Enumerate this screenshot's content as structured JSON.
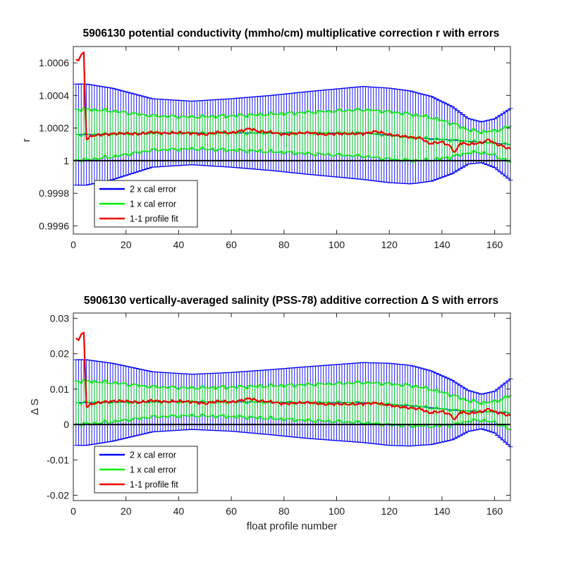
{
  "chart_data": [
    {
      "type": "line",
      "title": "5906130 potential conductivity (mmho/cm) multiplicative correction r with errors",
      "xlabel": "",
      "ylabel": "r",
      "xlim": [
        0,
        166
      ],
      "ylim": [
        0.99955,
        1.0007
      ],
      "xticks": [
        0,
        20,
        40,
        60,
        80,
        100,
        120,
        140,
        160
      ],
      "xtick_labels": [
        "0",
        "20",
        "40",
        "60",
        "80",
        "100",
        "120",
        "140",
        "160"
      ],
      "yticks": [
        0.9996,
        0.9998,
        1.0,
        1.0002,
        1.0004,
        1.0006
      ],
      "ytick_labels": [
        "0.9996",
        "0.9998",
        "1",
        "1.0002",
        "1.0004",
        "1.0006"
      ],
      "legend_position": "bottom-left",
      "reference_line": 1.0,
      "series": [
        {
          "name": "2 x cal error",
          "color": "#0000ff",
          "center_knots": [
            [
              5,
              1.00016
            ],
            [
              30,
              1.00017
            ],
            [
              60,
              1.00017
            ],
            [
              90,
              1.00017
            ],
            [
              110,
              1.00017
            ],
            [
              130,
              1.00014
            ],
            [
              145,
              1.000125
            ],
            [
              166,
              1.0001
            ]
          ],
          "halfwidth_knots": [
            [
              5,
              0.00031
            ],
            [
              15,
              0.00028
            ],
            [
              30,
              0.00021
            ],
            [
              45,
              0.000195
            ],
            [
              60,
              0.00021
            ],
            [
              75,
              0.00023
            ],
            [
              90,
              0.000255
            ],
            [
              110,
              0.000285
            ],
            [
              120,
              0.00029
            ],
            [
              128,
              0.000285
            ],
            [
              136,
              0.00026
            ],
            [
              144,
              0.000205
            ],
            [
              150,
              0.00014
            ],
            [
              155,
              0.000125
            ],
            [
              160,
              0.00015
            ],
            [
              166,
              0.00022
            ]
          ]
        },
        {
          "name": "1 x cal error",
          "color": "#00ee00",
          "center_knots": [
            [
              5,
              1.00016
            ],
            [
              30,
              1.00017
            ],
            [
              60,
              1.00017
            ],
            [
              90,
              1.00017
            ],
            [
              110,
              1.00017
            ],
            [
              130,
              1.00014
            ],
            [
              145,
              1.000125
            ],
            [
              166,
              1.0001
            ]
          ],
          "halfwidth_knots": [
            [
              5,
              0.000155
            ],
            [
              15,
              0.00014
            ],
            [
              30,
              0.000105
            ],
            [
              45,
              9.75e-05
            ],
            [
              60,
              0.000105
            ],
            [
              75,
              0.000115
            ],
            [
              90,
              0.0001275
            ],
            [
              110,
              0.0001425
            ],
            [
              120,
              0.000145
            ],
            [
              128,
              0.0001425
            ],
            [
              136,
              0.00013
            ],
            [
              144,
              0.0001025
            ],
            [
              150,
              7e-05
            ],
            [
              155,
              6.25e-05
            ],
            [
              160,
              7.5e-05
            ],
            [
              166,
              0.00011
            ]
          ]
        },
        {
          "name": "1-1 profile fit",
          "color": "#ee0000",
          "knots": [
            [
              1,
              1.00062
            ],
            [
              2,
              1.000615
            ],
            [
              3,
              1.00065
            ],
            [
              4,
              1.000665
            ],
            [
              4.5,
              1.00035
            ],
            [
              5,
              1.00013
            ],
            [
              7,
              1.000152
            ],
            [
              10,
              1.000158
            ],
            [
              15,
              1.000165
            ],
            [
              20,
              1.000168
            ],
            [
              25,
              1.000163
            ],
            [
              30,
              1.000175
            ],
            [
              35,
              1.000168
            ],
            [
              40,
              1.000172
            ],
            [
              45,
              1.000168
            ],
            [
              50,
              1.00016
            ],
            [
              55,
              1.000175
            ],
            [
              60,
              1.00017
            ],
            [
              65,
              1.000188
            ],
            [
              67,
              1.000198
            ],
            [
              70,
              1.00018
            ],
            [
              75,
              1.000175
            ],
            [
              80,
              1.00016
            ],
            [
              85,
              1.000168
            ],
            [
              90,
              1.000172
            ],
            [
              95,
              1.00016
            ],
            [
              100,
              1.000165
            ],
            [
              105,
              1.000165
            ],
            [
              110,
              1.000165
            ],
            [
              115,
              1.00018
            ],
            [
              120,
              1.00016
            ],
            [
              125,
              1.00015
            ],
            [
              130,
              1.00014
            ],
            [
              132,
              1.00014
            ],
            [
              135,
              1.000105
            ],
            [
              140,
              1.000115
            ],
            [
              143,
              1.00009
            ],
            [
              145,
              1.00005
            ],
            [
              147,
              1.00011
            ],
            [
              150,
              1.0001
            ],
            [
              155,
              1.00011
            ],
            [
              158,
              1.00013
            ],
            [
              160,
              1.000105
            ],
            [
              163,
              1.00009
            ],
            [
              166,
              1.00007
            ]
          ]
        }
      ]
    },
    {
      "type": "line",
      "title": "5906130 vertically-averaged salinity (PSS-78) additive correction Δ S with errors",
      "xlabel": "float profile number",
      "ylabel": "Δ S",
      "xlim": [
        0,
        166
      ],
      "ylim": [
        -0.0215,
        0.0315
      ],
      "xticks": [
        0,
        20,
        40,
        60,
        80,
        100,
        120,
        140,
        160
      ],
      "xtick_labels": [
        "0",
        "20",
        "40",
        "60",
        "80",
        "100",
        "120",
        "140",
        "160"
      ],
      "yticks": [
        -0.02,
        -0.01,
        0,
        0.01,
        0.02,
        0.03
      ],
      "ytick_labels": [
        "-0.02",
        "-0.01",
        "0",
        "0.01",
        "0.02",
        "0.03"
      ],
      "legend_position": "bottom-left",
      "reference_line": 0,
      "series": [
        {
          "name": "2 x cal error",
          "color": "#0000ff",
          "center_knots": [
            [
              5,
              0.0062
            ],
            [
              30,
              0.0064
            ],
            [
              60,
              0.0064
            ],
            [
              90,
              0.0062
            ],
            [
              110,
              0.0062
            ],
            [
              130,
              0.0052
            ],
            [
              145,
              0.004
            ],
            [
              166,
              0.0033
            ]
          ],
          "halfwidth_knots": [
            [
              5,
              0.0121
            ],
            [
              15,
              0.011
            ],
            [
              30,
              0.0085
            ],
            [
              45,
              0.0078
            ],
            [
              60,
              0.0083
            ],
            [
              75,
              0.0092
            ],
            [
              90,
              0.0102
            ],
            [
              110,
              0.0113
            ],
            [
              120,
              0.0116
            ],
            [
              128,
              0.0114
            ],
            [
              136,
              0.0104
            ],
            [
              144,
              0.0084
            ],
            [
              150,
              0.0058
            ],
            [
              155,
              0.0049
            ],
            [
              160,
              0.0059
            ],
            [
              166,
              0.0096
            ]
          ]
        },
        {
          "name": "1 x cal error",
          "color": "#00ee00",
          "center_knots": [
            [
              5,
              0.0062
            ],
            [
              30,
              0.0064
            ],
            [
              60,
              0.0064
            ],
            [
              90,
              0.0062
            ],
            [
              110,
              0.0062
            ],
            [
              130,
              0.0052
            ],
            [
              145,
              0.004
            ],
            [
              166,
              0.0033
            ]
          ],
          "halfwidth_knots": [
            [
              5,
              0.00605
            ],
            [
              15,
              0.0055
            ],
            [
              30,
              0.00425
            ],
            [
              45,
              0.0039
            ],
            [
              60,
              0.00415
            ],
            [
              75,
              0.0046
            ],
            [
              90,
              0.0051
            ],
            [
              110,
              0.00565
            ],
            [
              120,
              0.0058
            ],
            [
              128,
              0.0057
            ],
            [
              136,
              0.0052
            ],
            [
              144,
              0.0042
            ],
            [
              150,
              0.0029
            ],
            [
              155,
              0.00245
            ],
            [
              160,
              0.00295
            ],
            [
              166,
              0.0048
            ]
          ]
        },
        {
          "name": "1-1 profile fit",
          "color": "#ee0000",
          "knots": [
            [
              1,
              0.0244
            ],
            [
              2,
              0.0238
            ],
            [
              3,
              0.0255
            ],
            [
              4,
              0.026
            ],
            [
              4.5,
              0.015
            ],
            [
              5,
              0.0049
            ],
            [
              7,
              0.0058
            ],
            [
              10,
              0.0062
            ],
            [
              15,
              0.0066
            ],
            [
              20,
              0.0066
            ],
            [
              25,
              0.0062
            ],
            [
              30,
              0.0068
            ],
            [
              35,
              0.0064
            ],
            [
              40,
              0.0066
            ],
            [
              45,
              0.0064
            ],
            [
              50,
              0.0059
            ],
            [
              55,
              0.0066
            ],
            [
              60,
              0.0063
            ],
            [
              65,
              0.007
            ],
            [
              67,
              0.0074
            ],
            [
              70,
              0.0067
            ],
            [
              75,
              0.0064
            ],
            [
              80,
              0.0058
            ],
            [
              85,
              0.0061
            ],
            [
              90,
              0.0062
            ],
            [
              95,
              0.0057
            ],
            [
              100,
              0.0058
            ],
            [
              105,
              0.0057
            ],
            [
              110,
              0.0058
            ],
            [
              115,
              0.0061
            ],
            [
              120,
              0.0054
            ],
            [
              125,
              0.0049
            ],
            [
              130,
              0.0045
            ],
            [
              132,
              0.0044
            ],
            [
              135,
              0.0033
            ],
            [
              140,
              0.0037
            ],
            [
              143,
              0.0028
            ],
            [
              145,
              0.0014
            ],
            [
              147,
              0.0036
            ],
            [
              150,
              0.0031
            ],
            [
              155,
              0.0036
            ],
            [
              158,
              0.0044
            ],
            [
              160,
              0.0035
            ],
            [
              163,
              0.0031
            ],
            [
              166,
              0.0024
            ]
          ]
        }
      ]
    }
  ]
}
